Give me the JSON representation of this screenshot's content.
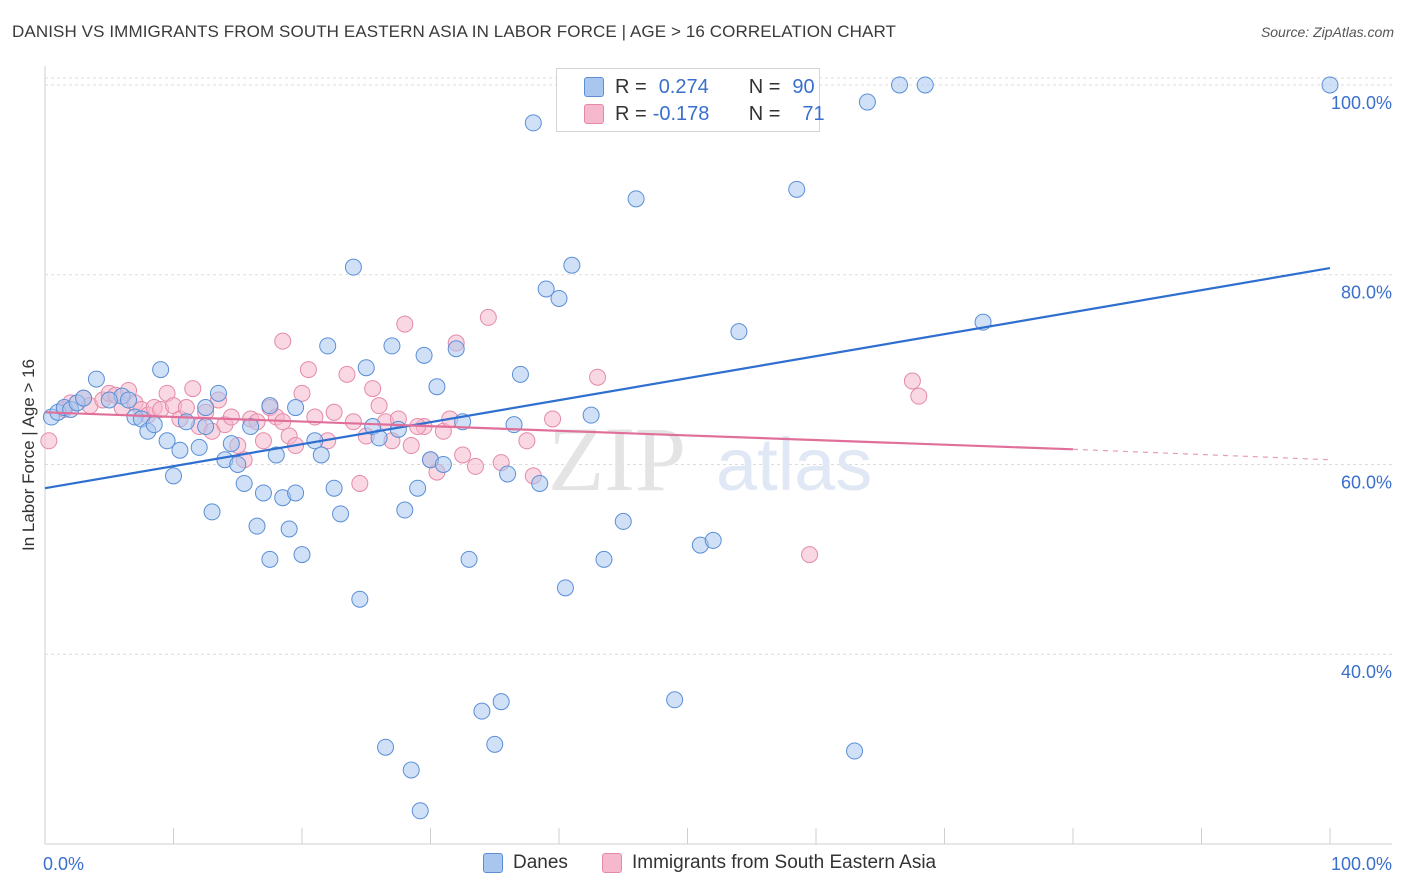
{
  "header": {
    "title": "DANISH VS IMMIGRANTS FROM SOUTH EASTERN ASIA IN LABOR FORCE | AGE > 16 CORRELATION CHART",
    "source": "Source: ZipAtlas.com"
  },
  "watermark": {
    "zip": "ZIP",
    "atlas": "atlas"
  },
  "legend": {
    "rows": [
      {
        "r_label": "R =",
        "r_value": "0.274",
        "n_label": "N =",
        "n_value": "90"
      },
      {
        "r_label": "R =",
        "r_value": "-0.178",
        "n_label": "N =",
        "n_value": "71"
      }
    ]
  },
  "bottom_legend": {
    "danes": "Danes",
    "immigrants": "Immigrants from South Eastern Asia"
  },
  "colors": {
    "danes_fill": "#a9c7ee",
    "danes_stroke": "#5a8fd6",
    "danes_line": "#2f6fcf",
    "imm_fill": "#f6b8cc",
    "imm_stroke": "#e48aa8",
    "imm_line": "#e0709a",
    "axis_label": "#3a6fce",
    "grid": "#dcdcdc"
  },
  "chart_data": {
    "type": "scatter",
    "title": "DANISH VS IMMIGRANTS FROM SOUTH EASTERN ASIA IN LABOR FORCE | AGE > 16 CORRELATION CHART",
    "xlabel": "",
    "ylabel": "In Labor Force | Age > 16",
    "xlim": [
      0,
      100
    ],
    "ylim": [
      20,
      102
    ],
    "x_tick_labels": [
      "0.0%",
      "100.0%"
    ],
    "y_ticks": [
      40,
      60,
      80,
      100
    ],
    "y_tick_labels": [
      "40.0%",
      "60.0%",
      "80.0%",
      "100.0%"
    ],
    "grid": "horizontal dashed",
    "legend_position": "top-center",
    "series": [
      {
        "name": "Danes",
        "R": 0.274,
        "N": 90,
        "trend": {
          "x": [
            0,
            100
          ],
          "y": [
            57.5,
            80.7
          ]
        },
        "points": [
          [
            0.5,
            65.0
          ],
          [
            1.0,
            65.5
          ],
          [
            1.5,
            66.0
          ],
          [
            2.0,
            65.8
          ],
          [
            2.5,
            66.5
          ],
          [
            3.0,
            67.0
          ],
          [
            4.0,
            69.0
          ],
          [
            6.0,
            67.2
          ],
          [
            6.5,
            66.8
          ],
          [
            7.0,
            65.0
          ],
          [
            7.5,
            64.8
          ],
          [
            8.0,
            63.5
          ],
          [
            9.0,
            70.0
          ],
          [
            9.5,
            62.5
          ],
          [
            10.0,
            58.8
          ],
          [
            10.5,
            61.5
          ],
          [
            11.0,
            64.5
          ],
          [
            12.0,
            61.8
          ],
          [
            12.5,
            64.0
          ],
          [
            13.0,
            55.0
          ],
          [
            13.5,
            67.5
          ],
          [
            14.0,
            60.5
          ],
          [
            14.5,
            62.2
          ],
          [
            15.0,
            60.0
          ],
          [
            15.5,
            58.0
          ],
          [
            16.0,
            64.0
          ],
          [
            16.5,
            53.5
          ],
          [
            17.0,
            57.0
          ],
          [
            17.5,
            50.0
          ],
          [
            18.0,
            61.0
          ],
          [
            18.5,
            56.5
          ],
          [
            19.0,
            53.2
          ],
          [
            19.5,
            66.0
          ],
          [
            20.0,
            50.5
          ],
          [
            21.0,
            62.5
          ],
          [
            21.5,
            61.0
          ],
          [
            22.0,
            72.5
          ],
          [
            22.5,
            57.5
          ],
          [
            23.0,
            54.8
          ],
          [
            24.0,
            80.8
          ],
          [
            25.0,
            70.2
          ],
          [
            25.5,
            64.0
          ],
          [
            26.0,
            62.8
          ],
          [
            27.0,
            72.5
          ],
          [
            27.5,
            63.7
          ],
          [
            28.0,
            55.2
          ],
          [
            29.0,
            57.5
          ],
          [
            29.5,
            71.5
          ],
          [
            30.0,
            60.5
          ],
          [
            30.5,
            68.2
          ],
          [
            31.0,
            60.0
          ],
          [
            32.0,
            72.2
          ],
          [
            32.5,
            64.5
          ],
          [
            33.0,
            50.0
          ],
          [
            34.0,
            34.0
          ],
          [
            35.0,
            30.5
          ],
          [
            36.0,
            59.0
          ],
          [
            37.0,
            69.5
          ],
          [
            38.0,
            96.0
          ],
          [
            38.5,
            58.0
          ],
          [
            39.0,
            78.5
          ],
          [
            40.0,
            77.5
          ],
          [
            40.5,
            47.0
          ],
          [
            41.0,
            81.0
          ],
          [
            43.5,
            50.0
          ],
          [
            45.0,
            54.0
          ],
          [
            46.0,
            88.0
          ],
          [
            49.0,
            35.2
          ],
          [
            51.0,
            51.5
          ],
          [
            52.0,
            52.0
          ],
          [
            54.0,
            74.0
          ],
          [
            58.5,
            89.0
          ],
          [
            63.0,
            29.8
          ],
          [
            64.0,
            98.2
          ],
          [
            66.5,
            100.0
          ],
          [
            68.5,
            100.0
          ],
          [
            73.0,
            75.0
          ],
          [
            100.0,
            100.0
          ],
          [
            12.5,
            66.0
          ],
          [
            8.5,
            64.2
          ],
          [
            5.0,
            66.8
          ],
          [
            19.5,
            57.0
          ],
          [
            35.5,
            35.0
          ],
          [
            24.5,
            45.8
          ],
          [
            28.5,
            27.8
          ],
          [
            29.2,
            23.5
          ],
          [
            26.5,
            30.2
          ],
          [
            42.5,
            65.2
          ],
          [
            17.5,
            66.2
          ],
          [
            36.5,
            64.2
          ],
          [
            42.0,
            100.0
          ]
        ]
      },
      {
        "name": "Immigrants from South Eastern Asia",
        "R": -0.178,
        "N": 71,
        "trend": {
          "x": [
            0,
            80
          ],
          "y": [
            65.5,
            61.6
          ]
        },
        "trend_dashed": {
          "x": [
            80,
            100
          ],
          "y": [
            61.6,
            60.5
          ]
        },
        "points": [
          [
            0.3,
            62.5
          ],
          [
            1.5,
            65.8
          ],
          [
            2.0,
            66.5
          ],
          [
            3.0,
            67.0
          ],
          [
            3.5,
            66.2
          ],
          [
            4.5,
            66.8
          ],
          [
            5.0,
            67.5
          ],
          [
            5.5,
            67.3
          ],
          [
            6.0,
            66.0
          ],
          [
            6.5,
            67.8
          ],
          [
            7.0,
            66.5
          ],
          [
            7.5,
            65.8
          ],
          [
            8.0,
            65.2
          ],
          [
            8.5,
            66.0
          ],
          [
            9.0,
            65.8
          ],
          [
            9.5,
            67.5
          ],
          [
            10.0,
            66.2
          ],
          [
            10.5,
            64.8
          ],
          [
            11.0,
            66.0
          ],
          [
            11.5,
            68.0
          ],
          [
            12.0,
            64.0
          ],
          [
            12.5,
            65.5
          ],
          [
            13.0,
            63.5
          ],
          [
            13.5,
            66.8
          ],
          [
            14.0,
            64.2
          ],
          [
            14.5,
            65.0
          ],
          [
            15.0,
            62.0
          ],
          [
            15.5,
            60.5
          ],
          [
            16.0,
            64.8
          ],
          [
            16.5,
            64.5
          ],
          [
            17.0,
            62.5
          ],
          [
            17.5,
            66.0
          ],
          [
            18.0,
            65.0
          ],
          [
            18.5,
            64.5
          ],
          [
            19.0,
            63.0
          ],
          [
            20.0,
            67.5
          ],
          [
            21.0,
            65.0
          ],
          [
            22.0,
            62.5
          ],
          [
            22.5,
            65.5
          ],
          [
            23.5,
            69.5
          ],
          [
            24.0,
            64.5
          ],
          [
            25.0,
            63.0
          ],
          [
            25.5,
            68.0
          ],
          [
            26.0,
            66.2
          ],
          [
            26.5,
            64.5
          ],
          [
            27.0,
            62.5
          ],
          [
            27.5,
            64.8
          ],
          [
            28.5,
            62.0
          ],
          [
            29.5,
            64.0
          ],
          [
            30.0,
            60.5
          ],
          [
            30.5,
            59.2
          ],
          [
            31.0,
            63.5
          ],
          [
            31.5,
            64.8
          ],
          [
            32.0,
            72.8
          ],
          [
            32.5,
            61.0
          ],
          [
            33.5,
            59.8
          ],
          [
            34.5,
            75.5
          ],
          [
            35.5,
            60.2
          ],
          [
            37.5,
            62.5
          ],
          [
            38.0,
            58.8
          ],
          [
            39.5,
            64.8
          ],
          [
            43.0,
            69.2
          ],
          [
            59.5,
            50.5
          ],
          [
            67.5,
            68.8
          ],
          [
            68.0,
            67.2
          ],
          [
            29.0,
            64.0
          ],
          [
            18.5,
            73.0
          ],
          [
            19.5,
            62.0
          ],
          [
            20.5,
            70.0
          ],
          [
            28.0,
            74.8
          ],
          [
            24.5,
            58.0
          ]
        ]
      }
    ]
  }
}
